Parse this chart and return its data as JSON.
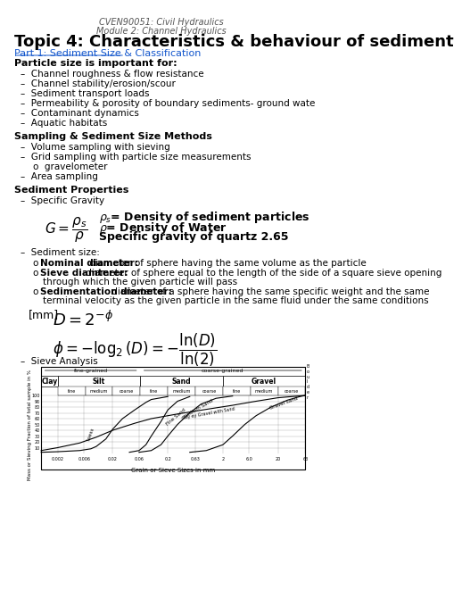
{
  "header_line1": "CVEN90051: Civil Hydraulics",
  "header_line2": "Module 2: Channel Hydraulics",
  "title": "Topic 4: Characteristics & behaviour of sediment",
  "part1": "Part 1: Sediment Size & Classification",
  "section1_bold": "Particle size is important for:",
  "bullets1": [
    "Channel roughness & flow resistance",
    "Channel stability/erosion/scour",
    "Sediment transport loads",
    "Permeability & porosity of boundary sediments- ground water exchange",
    "Contaminant dynamics",
    "Aquatic habitats"
  ],
  "section2_bold": "Sampling & Sediment Size Methods",
  "bullets2": [
    "Volume sampling with sieving",
    "Grid sampling with particle size measurements",
    "Area sampling"
  ],
  "subbullet2": "gravelometer",
  "section3_bold": "Sediment Properties",
  "sp_bullet": "Specific Gravity",
  "formula_G": "$G = \\dfrac{\\rho_s}{\\rho}$",
  "rho_s_text": "$\\rho_s$= Density of sediment particles",
  "rho_text": "$\\rho$= Density of Water",
  "sg_text": "Specific gravity of quartz 2.65",
  "sedsize_label": "Sediment size:",
  "nominal_bold": "Nominal diameter:",
  "nominal_text": " diameter of sphere having the same volume as the particle",
  "sieve_bold": "Sieve diamterer:",
  "sieve_text": " diameter of sphere equal to the length of the side of a square sieve opening\n         through which the given particle will pass",
  "sedim_bold": "Sedimentation diameter:",
  "sedim_text": " diameter of a sphere having the same specific weight and the same\n         terminal velocity as the given particle in the same fluid under the same conditions",
  "formula_D": "[mm]   $D = 2^{-\\phi}$",
  "formula_phi": "$\\phi = -\\log_2(D) = -\\dfrac{\\ln(D)}{\\ln(2)}$",
  "sieve_analysis": "Sieve Analysis",
  "bg_color": "#ffffff",
  "text_color": "#000000",
  "header_color": "#555555",
  "part1_color": "#1155CC",
  "title_size": 13,
  "body_size": 7.5
}
